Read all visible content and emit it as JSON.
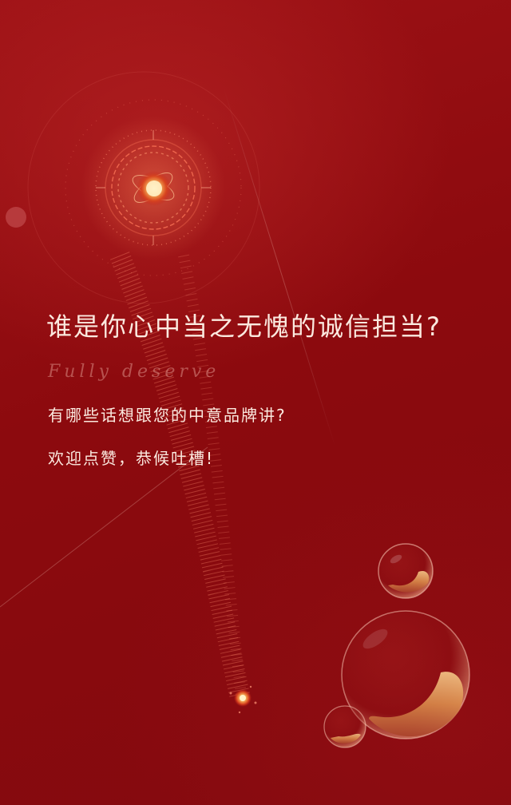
{
  "headline": "谁是你心中当之无愧的诚信担当?",
  "subtitle": "Fully deserve",
  "body_lines": [
    "有哪些话想跟您的中意品牌讲?",
    "欢迎点赞，恭候吐槽!"
  ],
  "colors": {
    "background": "#8c0a0e",
    "text": "#fbe9df",
    "accent_gold": "#f2b25c"
  }
}
